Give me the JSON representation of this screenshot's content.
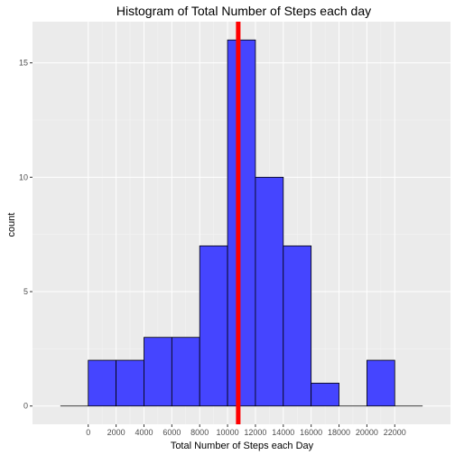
{
  "chart_data": {
    "type": "bar",
    "title": "Histogram of Total Number of Steps each day",
    "xlabel": "Total Number of Steps each Day",
    "ylabel": "count",
    "bin_width": 2000,
    "bins": [
      {
        "start": -2000,
        "end": 0,
        "count": 0
      },
      {
        "start": 0,
        "end": 2000,
        "count": 2
      },
      {
        "start": 2000,
        "end": 4000,
        "count": 2
      },
      {
        "start": 4000,
        "end": 6000,
        "count": 3
      },
      {
        "start": 6000,
        "end": 8000,
        "count": 3
      },
      {
        "start": 8000,
        "end": 10000,
        "count": 7
      },
      {
        "start": 10000,
        "end": 12000,
        "count": 16
      },
      {
        "start": 12000,
        "end": 14000,
        "count": 10
      },
      {
        "start": 14000,
        "end": 16000,
        "count": 7
      },
      {
        "start": 16000,
        "end": 18000,
        "count": 1
      },
      {
        "start": 18000,
        "end": 20000,
        "count": 0
      },
      {
        "start": 20000,
        "end": 22000,
        "count": 2
      },
      {
        "start": 22000,
        "end": 24000,
        "count": 0
      }
    ],
    "xticks": [
      0,
      2000,
      4000,
      6000,
      8000,
      10000,
      12000,
      14000,
      16000,
      18000,
      20000,
      22000
    ],
    "yticks": [
      0,
      5,
      10,
      15
    ],
    "xlim": [
      -4000,
      26000
    ],
    "ylim": [
      -0.8,
      16.8
    ],
    "vline": {
      "x": 10766,
      "color": "#ff0000"
    },
    "bar_fill": "#4545ff",
    "bar_stroke": "#000000",
    "panel_bg": "#ebebeb",
    "grid": true,
    "legend": "none"
  }
}
